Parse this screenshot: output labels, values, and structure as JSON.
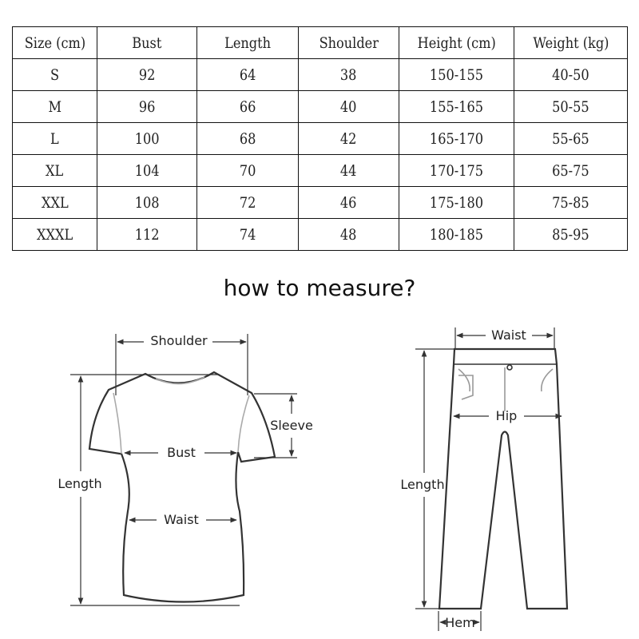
{
  "size_table": {
    "headers": [
      "Size (cm)",
      "Bust",
      "Length",
      "Shoulder",
      "Height (cm)",
      "Weight (kg)"
    ],
    "rows": [
      [
        "S",
        "92",
        "64",
        "38",
        "150-155",
        "40-50"
      ],
      [
        "M",
        "96",
        "66",
        "40",
        "155-165",
        "50-55"
      ],
      [
        "L",
        "100",
        "68",
        "42",
        "165-170",
        "55-65"
      ],
      [
        "XL",
        "104",
        "70",
        "44",
        "170-175",
        "65-75"
      ],
      [
        "XXL",
        "108",
        "72",
        "46",
        "175-180",
        "75-85"
      ],
      [
        "XXXL",
        "112",
        "74",
        "48",
        "180-185",
        "85-95"
      ]
    ]
  },
  "title": "how to measure?",
  "shirt_diagram": {
    "shoulder": "Shoulder",
    "sleeve": "Sleeve",
    "bust": "Bust",
    "length": "Length",
    "waist": "Waist"
  },
  "pants_diagram": {
    "waist": "Waist",
    "hip": "Hip",
    "length": "Length",
    "hem": "Hem"
  }
}
